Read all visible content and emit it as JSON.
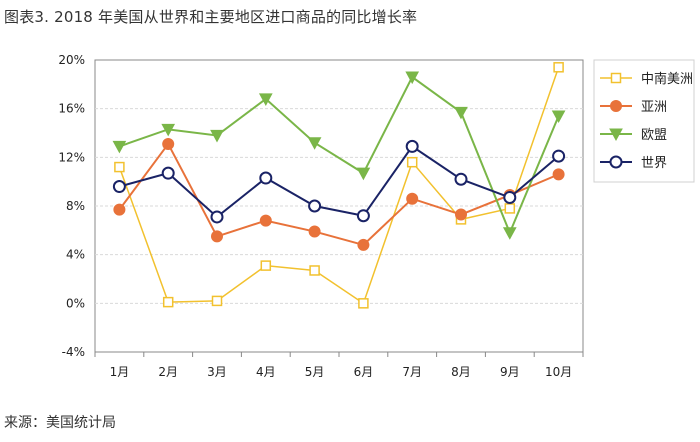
{
  "title": "图表3. 2018 年美国从世界和主要地区进口商品的同比增长率",
  "source": "来源：美国统计局",
  "chart_data": {
    "type": "line",
    "categories": [
      "1月",
      "2月",
      "3月",
      "4月",
      "5月",
      "6月",
      "7月",
      "8月",
      "9月",
      "10月"
    ],
    "ylim": [
      -4,
      20
    ],
    "yticks": [
      -4,
      0,
      4,
      8,
      12,
      16,
      20
    ],
    "ytick_labels": [
      "-4%",
      "0%",
      "4%",
      "8%",
      "12%",
      "16%",
      "20%"
    ],
    "grid": true,
    "legend_position": "right",
    "series": [
      {
        "name": "中南美洲",
        "color": "#f2c12e",
        "marker": "square",
        "values": [
          11.2,
          0.1,
          0.2,
          3.1,
          2.7,
          0.0,
          11.6,
          6.9,
          7.8,
          19.4
        ]
      },
      {
        "name": "亚洲",
        "color": "#e8723a",
        "marker": "circle",
        "values": [
          7.7,
          13.1,
          5.5,
          6.8,
          5.9,
          4.8,
          8.6,
          7.3,
          8.9,
          10.6
        ]
      },
      {
        "name": "欧盟",
        "color": "#7ab648",
        "marker": "triangle-down",
        "values": [
          12.9,
          14.3,
          13.8,
          16.8,
          13.2,
          10.7,
          18.6,
          15.7,
          5.8,
          15.4
        ]
      },
      {
        "name": "世界",
        "color": "#1a2366",
        "marker": "open-circle",
        "values": [
          9.6,
          10.7,
          7.1,
          10.3,
          8.0,
          7.2,
          12.9,
          10.2,
          8.7,
          12.1
        ]
      }
    ]
  }
}
